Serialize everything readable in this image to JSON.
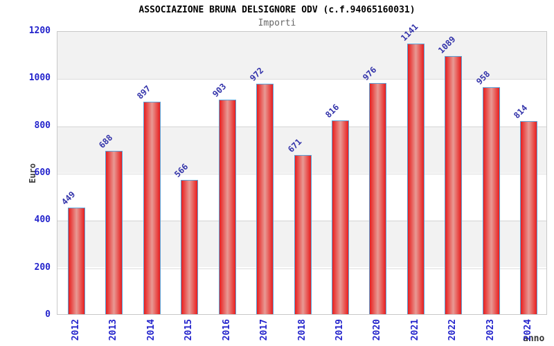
{
  "title": "ASSOCIAZIONE BRUNA DELSIGNORE ODV (c.f.94065160031)",
  "subtitle": "Importi",
  "axis": {
    "y_label": "Euro",
    "x_label": "anno"
  },
  "chart_data": {
    "type": "bar",
    "title": "ASSOCIAZIONE BRUNA DELSIGNORE ODV (c.f.94065160031)",
    "subtitle": "Importi",
    "categories": [
      "2012",
      "2013",
      "2014",
      "2015",
      "2016",
      "2017",
      "2018",
      "2019",
      "2020",
      "2021",
      "2022",
      "2023",
      "2024"
    ],
    "values": [
      449,
      688,
      897,
      566,
      903,
      972,
      671,
      816,
      976,
      1141,
      1089,
      958,
      814
    ],
    "xlabel": "anno",
    "ylabel": "Euro",
    "ylim": [
      0,
      1200
    ],
    "yticks": [
      0,
      200,
      400,
      600,
      800,
      1000,
      1200
    ],
    "grid": true,
    "legend_position": "none",
    "band_colors": [
      "#f2f2f2",
      "#ffffff"
    ]
  },
  "colors": {
    "bar_edge_red": "#e81e1e",
    "bar_center_light": "#e89a94",
    "bar_border_blue": "#5aa2d8",
    "axis_tick_blue": "#2424cc",
    "value_label_blue": "#3333aa",
    "band_gray": "#f2f2f2",
    "grid_line": "#dcdcdc",
    "plot_border": "#c8c8c8",
    "title_color": "#000000",
    "subtitle_color": "#666666",
    "axis_name_color": "#3c3c3c"
  }
}
